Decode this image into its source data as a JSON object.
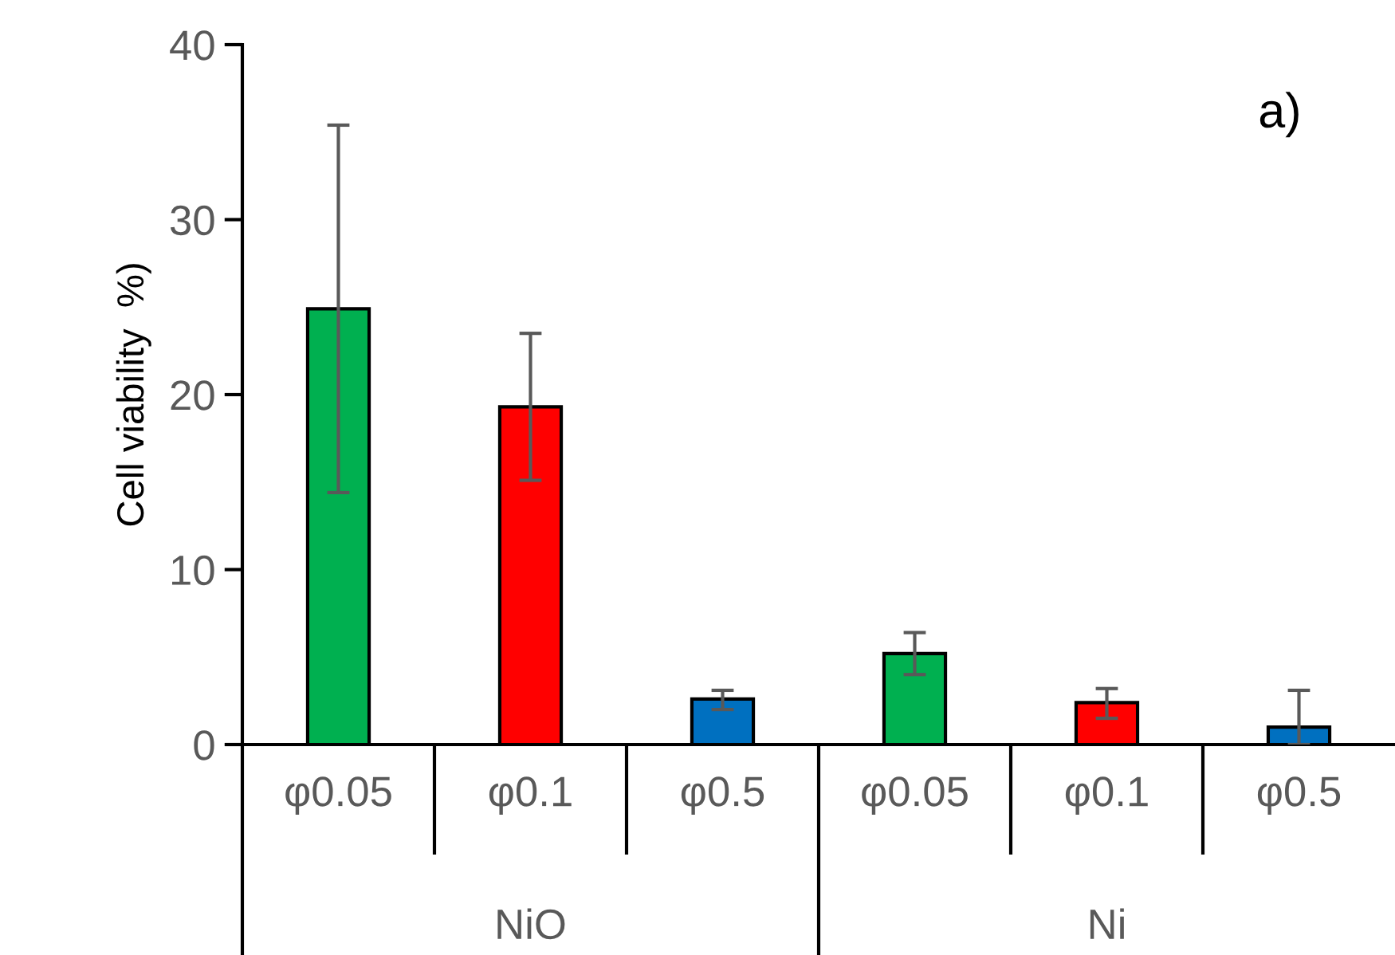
{
  "chart_data": {
    "type": "bar",
    "ylabel": "Cell viability  %)",
    "categories": [
      "φ0.05",
      "φ0.1",
      "φ0.5",
      "φ0.05",
      "φ0.1",
      "φ0.5"
    ],
    "values": [
      24.9,
      19.3,
      2.6,
      5.2,
      2.4,
      1.0
    ],
    "colors": [
      "#00b050",
      "#ff0000",
      "#0070c0",
      "#00b050",
      "#ff0000",
      "#0070c0"
    ],
    "errors": [
      [
        14.4,
        35.4
      ],
      [
        15.1,
        23.5
      ],
      [
        2.0,
        3.1
      ],
      [
        4.0,
        6.4
      ],
      [
        1.5,
        3.2
      ],
      [
        0.0,
        3.1
      ]
    ],
    "ylim": [
      0,
      40
    ],
    "yticks": [
      0,
      10,
      20,
      30,
      40
    ],
    "grid": false,
    "annotations": [
      "a)",
      "NiO",
      "Ni"
    ]
  }
}
